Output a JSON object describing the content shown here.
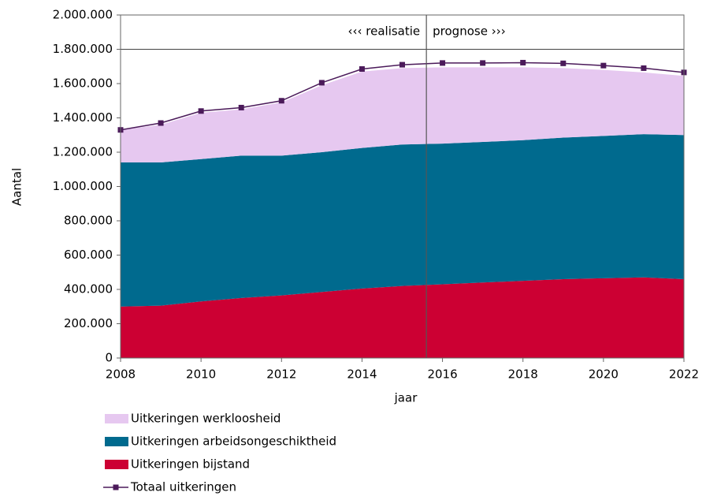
{
  "chart_data": {
    "type": "stacked_area_line",
    "ylabel": "Aantal",
    "xlabel": "jaar",
    "annotations": [
      "‹‹‹ realisatie",
      "prognose ›››"
    ],
    "divider": 2015.6,
    "reference_line": 1800000,
    "x": [
      2008,
      2009,
      2010,
      2011,
      2012,
      2013,
      2014,
      2015,
      2016,
      2017,
      2018,
      2019,
      2020,
      2021,
      2022
    ],
    "series": [
      {
        "name": "Uitkeringen werkloosheid",
        "color": "#e6c8f0",
        "stack": true,
        "values": [
          190000,
          220000,
          270000,
          270000,
          310000,
          390000,
          445000,
          445000,
          445000,
          435000,
          425000,
          405000,
          385000,
          360000,
          345000
        ]
      },
      {
        "name": "Uitkeringen arbeidsongeschiktheid",
        "color": "#006a8e",
        "stack": true,
        "values": [
          840000,
          835000,
          830000,
          830000,
          815000,
          815000,
          820000,
          825000,
          820000,
          820000,
          820000,
          825000,
          830000,
          835000,
          840000
        ]
      },
      {
        "name": "Uitkeringen bijstand",
        "color": "#cc0033",
        "stack": true,
        "values": [
          300000,
          305000,
          330000,
          350000,
          365000,
          385000,
          405000,
          420000,
          430000,
          440000,
          450000,
          460000,
          465000,
          470000,
          460000
        ]
      },
      {
        "name": "Totaal uitkeringen",
        "color": "#4b1a5a",
        "stack": false,
        "values": [
          1330000,
          1370000,
          1440000,
          1460000,
          1500000,
          1605000,
          1685000,
          1710000,
          1720000,
          1720000,
          1722000,
          1718000,
          1705000,
          1690000,
          1665000
        ]
      }
    ],
    "xlim": [
      2008,
      2022
    ],
    "xticks": [
      2008,
      2010,
      2012,
      2014,
      2016,
      2018,
      2020,
      2022
    ],
    "ylim": [
      0,
      2000000
    ],
    "yticks": [
      0,
      {
        "value": 200000,
        "label": "200.000"
      },
      {
        "value": 400000,
        "label": "400.000"
      },
      {
        "value": 600000,
        "label": "600.000"
      },
      {
        "value": 800000,
        "label": "800.000"
      },
      {
        "value": 1000000,
        "label": "1.000.000"
      },
      {
        "value": 1200000,
        "label": "1.200.000"
      },
      {
        "value": 1400000,
        "label": "1.400.000"
      },
      {
        "value": 1600000,
        "label": "1.600.000"
      },
      {
        "value": 1800000,
        "label": "1.800.000"
      },
      {
        "value": 2000000,
        "label": "2.000.000"
      }
    ]
  }
}
